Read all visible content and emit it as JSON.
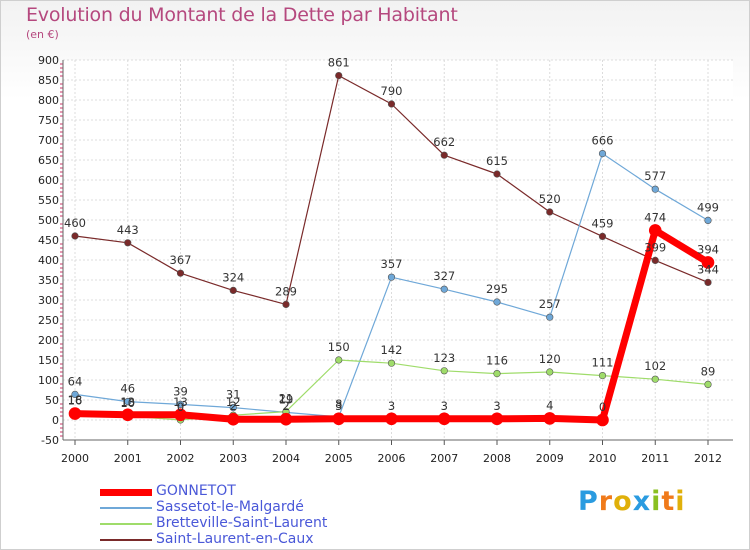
{
  "title": "Evolution du Montant de la Dette par Habitant",
  "unit": "(en €)",
  "brand": {
    "text": "Proxiti",
    "colors": [
      "#2a9be0",
      "#f07a1a",
      "#e0b00a",
      "#2a9be0",
      "#8ac020",
      "#f07a1a",
      "#e0b00a"
    ]
  },
  "chart_data": {
    "type": "line",
    "title": "Evolution du Montant de la Dette par Habitant",
    "ylabel": "(en €)",
    "xlabel": "",
    "ylim": [
      -50,
      900
    ],
    "yticks": [
      -50,
      0,
      50,
      100,
      150,
      200,
      250,
      300,
      350,
      400,
      450,
      500,
      550,
      600,
      650,
      700,
      750,
      800,
      850,
      900
    ],
    "grid": true,
    "legend": "bottom-left",
    "x": [
      "2000",
      "2001",
      "2002",
      "2003",
      "2004",
      "2005",
      "2006",
      "2007",
      "2008",
      "2009",
      "2010",
      "2011",
      "2012"
    ],
    "series": [
      {
        "name": "GONNETOT",
        "color": "#ff0000",
        "width": 7,
        "values": [
          16,
          13,
          13,
          2,
          2,
          3,
          3,
          3,
          3,
          4,
          0,
          474,
          394
        ]
      },
      {
        "name": "Sassetot-le-Malgardé",
        "color": "#6fa8d8",
        "width": 1.2,
        "values": [
          64,
          46,
          39,
          31,
          19,
          8,
          357,
          327,
          295,
          257,
          666,
          577,
          499
        ]
      },
      {
        "name": "Bretteville-Saint-Laurent",
        "color": "#9fdc6a",
        "width": 1.2,
        "values": [
          18,
          10,
          0,
          12,
          21,
          150,
          142,
          123,
          116,
          120,
          111,
          102,
          89
        ]
      },
      {
        "name": "Saint-Laurent-en-Caux",
        "color": "#7a2a2a",
        "width": 1.2,
        "values": [
          460,
          443,
          367,
          324,
          289,
          861,
          790,
          662,
          615,
          520,
          459,
          399,
          344
        ]
      }
    ]
  }
}
